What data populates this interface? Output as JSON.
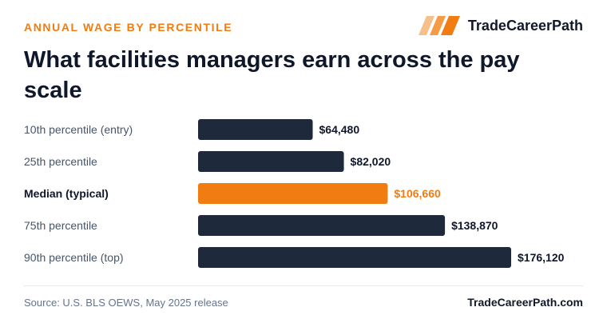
{
  "header": {
    "eyebrow": "ANNUAL WAGE BY PERCENTILE",
    "brand_name": "TradeCareerPath",
    "title": "What facilities managers earn across the pay scale"
  },
  "footer": {
    "source": "Source: U.S. BLS OEWS, May 2025 release",
    "site": "TradeCareerPath.com"
  },
  "colors": {
    "accent": "#f07c12",
    "bar": "#1e293b"
  },
  "chart_data": {
    "type": "bar",
    "orientation": "horizontal",
    "categories": [
      "10th percentile (entry)",
      "25th percentile",
      "Median (typical)",
      "75th percentile",
      "90th percentile (top)"
    ],
    "values": [
      64480,
      82020,
      106660,
      138870,
      176120
    ],
    "value_labels": [
      "$64,480",
      "$82,020",
      "$106,660",
      "$138,870",
      "$176,120"
    ],
    "highlight_index": 2,
    "xlim": [
      0,
      176120
    ],
    "grid": false
  }
}
